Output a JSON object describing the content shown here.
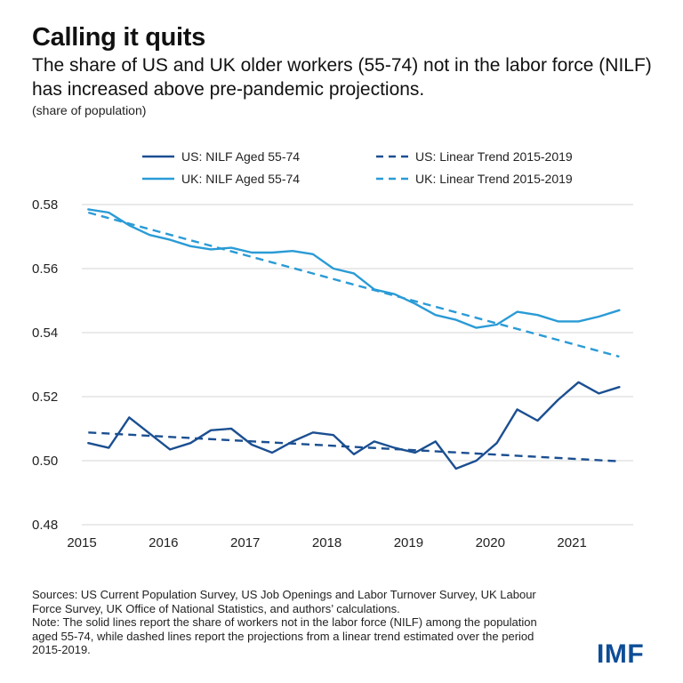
{
  "title": "Calling it quits",
  "subtitle": "The share of US and UK older workers (55-74) not in the labor force (NILF) has increased above pre-pandemic projections.",
  "units_note": "(share of population)",
  "sources": "Sources: US Current Population Survey, US Job Openings and Labor Turnover Survey, UK Labour Force Survey, UK Office of National Statistics, and authors’ calculations.",
  "note": "Note: The solid lines report the share of workers not in the labor force (NILF) among the population aged 55-74, while dashed lines report the projections from a linear trend estimated over the period 2015-2019.",
  "logo": "IMF",
  "colors": {
    "us": "#1b4f91",
    "uk": "#2a9bd6",
    "grid": "#d6d6d6",
    "logo": "#0e4d97"
  },
  "chart_data": {
    "type": "line",
    "xlim": [
      2015,
      2021.75
    ],
    "ylim": [
      0.48,
      0.58
    ],
    "xticks": [
      2015,
      2016,
      2017,
      2018,
      2019,
      2020,
      2021
    ],
    "yticks": [
      0.48,
      0.5,
      0.52,
      0.54,
      0.56,
      0.58
    ],
    "ytick_labels": [
      "0.48",
      "0.50",
      "0.52",
      "0.54",
      "0.56",
      "0.58"
    ],
    "grid": "horizontal",
    "legend_position": "top",
    "x": [
      2015.08,
      2015.33,
      2015.58,
      2015.83,
      2016.08,
      2016.33,
      2016.58,
      2016.83,
      2017.08,
      2017.33,
      2017.58,
      2017.83,
      2018.08,
      2018.33,
      2018.58,
      2018.83,
      2019.08,
      2019.33,
      2019.58,
      2019.83,
      2020.08,
      2020.33,
      2020.58,
      2020.83,
      2021.08,
      2021.33,
      2021.58
    ],
    "series": [
      {
        "name": "US: NILF Aged 55-74",
        "color": "#1b4f91",
        "style": "solid",
        "values": [
          0.5055,
          0.504,
          0.5135,
          0.5085,
          0.5035,
          0.5055,
          0.5095,
          0.51,
          0.505,
          0.5025,
          0.506,
          0.5088,
          0.508,
          0.502,
          0.506,
          0.504,
          0.5025,
          0.506,
          0.4975,
          0.5,
          0.5055,
          0.516,
          0.5125,
          0.519,
          0.5245,
          0.521,
          0.523
        ]
      },
      {
        "name": "UK: NILF Aged 55-74",
        "color": "#2a9bd6",
        "style": "solid",
        "values": [
          0.5785,
          0.5775,
          0.5735,
          0.5705,
          0.569,
          0.567,
          0.566,
          0.5665,
          0.565,
          0.565,
          0.5655,
          0.5645,
          0.56,
          0.5585,
          0.5535,
          0.552,
          0.549,
          0.5455,
          0.544,
          0.5415,
          0.5425,
          0.5465,
          0.5455,
          0.5435,
          0.5435,
          0.545,
          0.547
        ]
      },
      {
        "name": "US: Linear Trend 2015-2019",
        "color": "#1b4f91",
        "style": "dashed",
        "x": [
          2015.08,
          2021.58
        ],
        "values": [
          0.5088,
          0.4998
        ]
      },
      {
        "name": "UK: Linear Trend 2015-2019",
        "color": "#2a9bd6",
        "style": "dashed",
        "x": [
          2015.08,
          2021.58
        ],
        "values": [
          0.5775,
          0.5325
        ]
      }
    ]
  }
}
